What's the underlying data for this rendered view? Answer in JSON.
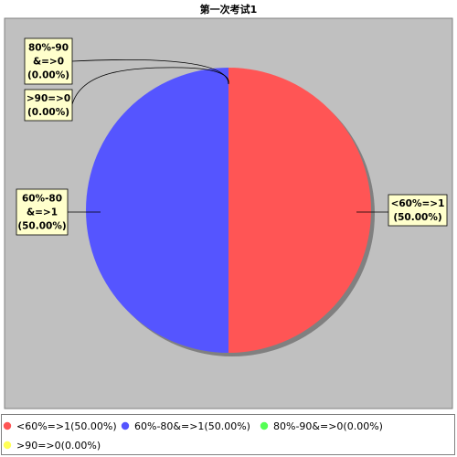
{
  "chart_data": {
    "type": "pie",
    "title": "第一次考试1",
    "series": [
      {
        "name": "<60%=>1",
        "value": 1,
        "percent": "50.00%",
        "color": "#ff5555",
        "label_lines": [
          "<60%=>1",
          "(50.00%)"
        ],
        "legend": "<60%=>1(50.00%)"
      },
      {
        "name": "60%-80&=>1",
        "value": 1,
        "percent": "50.00%",
        "color": "#5555ff",
        "label_lines": [
          "60%-80",
          "&=>1",
          "(50.00%)"
        ],
        "legend": "60%-80&=>1(50.00%)"
      },
      {
        "name": "80%-90&=>0",
        "value": 0,
        "percent": "0.00%",
        "color": "#55ff55",
        "label_lines": [
          "80%-90",
          "&=>0",
          "(0.00%)"
        ],
        "legend": "80%-90&=>0(0.00%)"
      },
      {
        "name": ">90=>0",
        "value": 0,
        "percent": "0.00%",
        "color": "#ffff55",
        "label_lines": [
          ">90=>0",
          "(0.00%)"
        ],
        "legend": ">90=>0(0.00%)"
      }
    ],
    "plot_background": "#c0c0c0",
    "label_background": "#ffffcc",
    "legend_placement": "bottom"
  }
}
